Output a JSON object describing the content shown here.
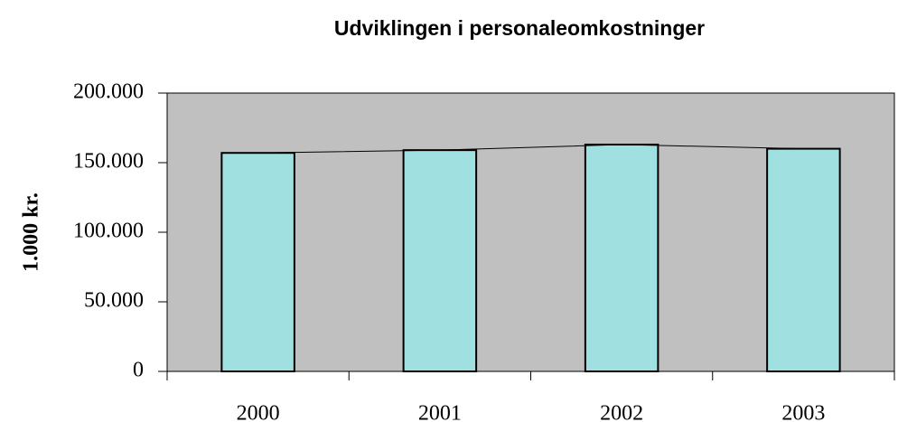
{
  "chart_data": {
    "type": "bar",
    "title": "Udviklingen i personaleomkostninger",
    "ylabel": "1.000 kr.",
    "categories": [
      "2000",
      "2001",
      "2002",
      "2003"
    ],
    "values": [
      157000,
      159000,
      163000,
      160000
    ],
    "color": "#a0e0e0",
    "plot_background": "#c0c0c0",
    "connect_tops": true,
    "ylim": [
      0,
      200000
    ],
    "yticks": [
      0,
      {
        "value": 50000,
        "label": "50.000"
      },
      {
        "value": 100000,
        "label": "100.000"
      },
      {
        "value": 150000,
        "label": "150.000"
      },
      {
        "value": 200000,
        "label": "200.000"
      }
    ],
    "grid": false
  }
}
